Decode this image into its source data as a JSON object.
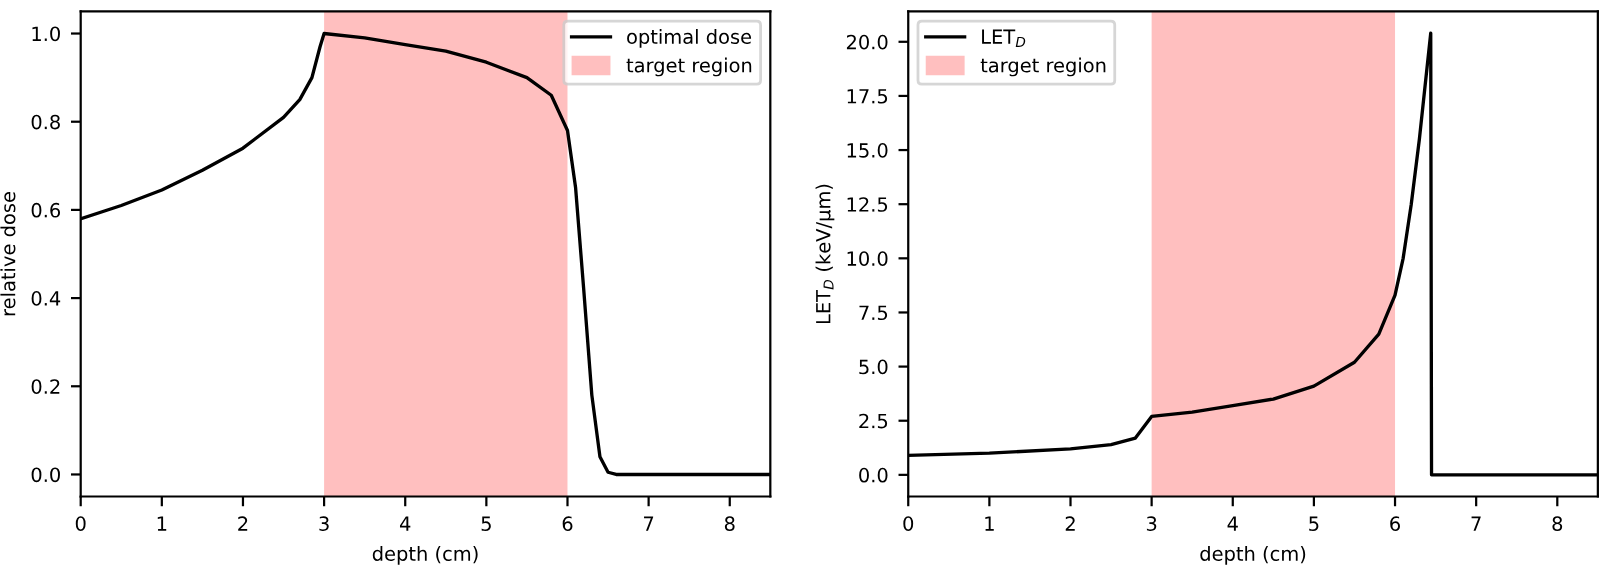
{
  "chart_data": [
    {
      "type": "line",
      "xlabel": "depth (cm)",
      "ylabel": "relative dose",
      "xlim": [
        0,
        8.5
      ],
      "ylim": [
        -0.05,
        1.05
      ],
      "xticks": [
        0,
        1,
        2,
        3,
        4,
        5,
        6,
        7,
        8
      ],
      "yticks": [
        {
          "value": 0,
          "label": "0.0"
        },
        0.2,
        0.4,
        0.6,
        0.8,
        {
          "value": 1,
          "label": "1.0"
        }
      ],
      "legend": "top right",
      "grid": false,
      "marker": "none",
      "line_style": "solid",
      "series": [
        {
          "name": "optimal dose",
          "color": "#000000",
          "x": [
            0,
            0.5,
            1,
            1.5,
            2,
            2.5,
            2.7,
            2.85,
            2.95,
            3.0,
            3.5,
            4,
            4.5,
            5,
            5.5,
            5.8,
            6.0,
            6.1,
            6.2,
            6.3,
            6.4,
            6.5,
            6.6,
            8.5
          ],
          "values": [
            0.58,
            0.61,
            0.645,
            0.69,
            0.74,
            0.81,
            0.85,
            0.9,
            0.97,
            1.0,
            0.99,
            0.975,
            0.96,
            0.935,
            0.9,
            0.86,
            0.78,
            0.65,
            0.42,
            0.18,
            0.04,
            0.005,
            0,
            0
          ]
        }
      ],
      "bands": [
        {
          "axis": "x",
          "from": 3,
          "to": 6,
          "label": "target region",
          "color": "#ffbfbf"
        }
      ]
    },
    {
      "type": "line",
      "xlabel": "depth (cm)",
      "ylabel": "LET$_{D}$ (keV/μm)",
      "xlim": [
        0,
        8.5
      ],
      "ylim": [
        -1.0,
        21.4
      ],
      "xticks": [
        0,
        1,
        2,
        3,
        4,
        5,
        6,
        7,
        8
      ],
      "yticks": [
        {
          "value": 0,
          "label": "0.0"
        },
        2.5,
        {
          "value": 5,
          "label": "5.0"
        },
        7.5,
        {
          "value": 10,
          "label": "10.0"
        },
        12.5,
        {
          "value": 15,
          "label": "15.0"
        },
        17.5,
        {
          "value": 20,
          "label": "20.0"
        }
      ],
      "legend": "top left",
      "grid": false,
      "marker": "none",
      "line_style": "solid",
      "series": [
        {
          "name": "LET$_{D}$",
          "color": "#000000",
          "x": [
            0,
            1,
            2,
            2.5,
            2.8,
            2.9,
            3.0,
            3.5,
            4,
            4.5,
            5,
            5.5,
            5.8,
            6.0,
            6.1,
            6.2,
            6.3,
            6.4,
            6.44,
            6.45,
            8.5
          ],
          "values": [
            0.9,
            1.0,
            1.2,
            1.4,
            1.7,
            2.2,
            2.7,
            2.9,
            3.2,
            3.5,
            4.1,
            5.2,
            6.5,
            8.3,
            10.0,
            12.5,
            15.5,
            19.0,
            20.4,
            0,
            0
          ]
        }
      ],
      "bands": [
        {
          "axis": "x",
          "from": 3,
          "to": 6,
          "label": "target region",
          "color": "#ffbfbf"
        }
      ]
    }
  ]
}
